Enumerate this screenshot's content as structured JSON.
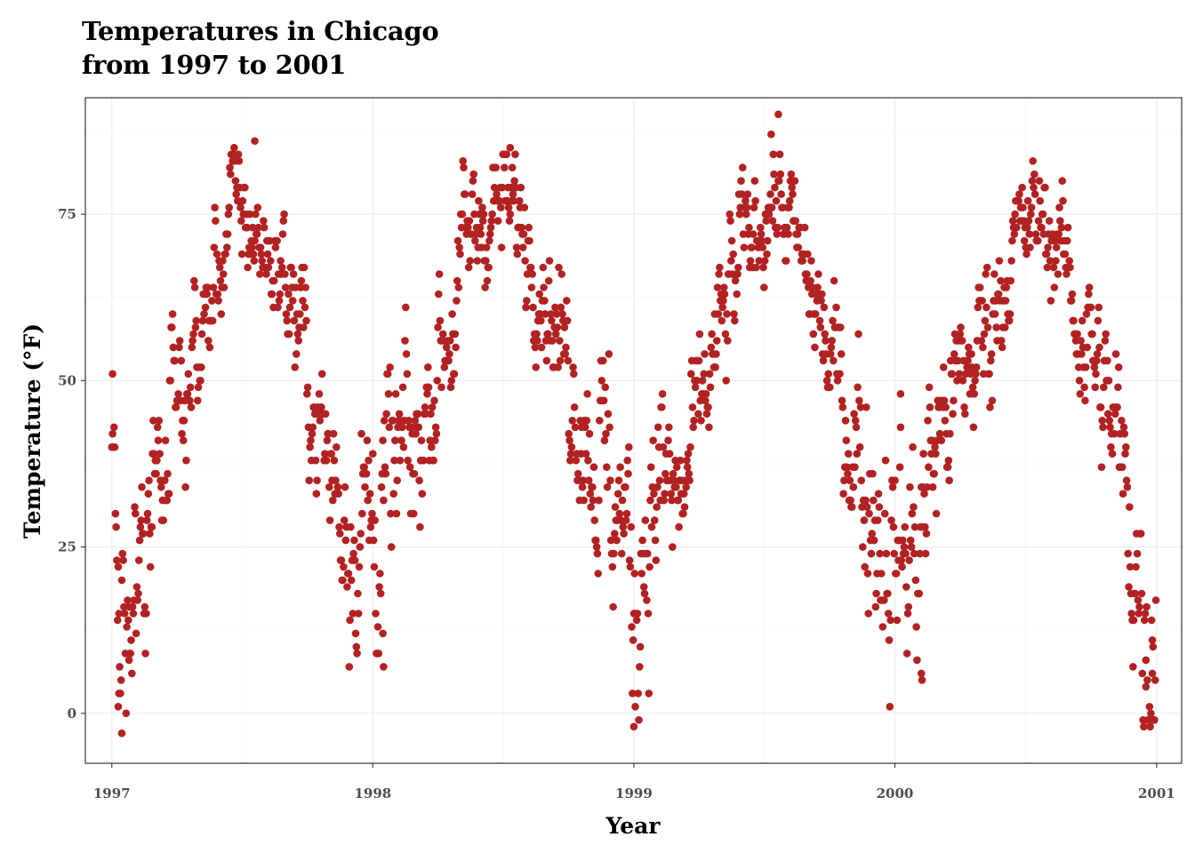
{
  "chart_data": {
    "type": "scatter",
    "title": "Temperatures in Chicago",
    "subtitle": "from 1997 to 2001",
    "xlabel": "Year",
    "ylabel": "Temperature (°F)",
    "x_ticks": [
      "1997",
      "1998",
      "1999",
      "2000",
      "2001"
    ],
    "y_ticks": [
      "0",
      "25",
      "50",
      "75"
    ],
    "xlim": [
      "1996-11-25",
      "2001-02-05"
    ],
    "ylim": [
      -7.5,
      92.5
    ],
    "grid": true,
    "point_color": "#b22222",
    "series_note": "",
    "anchors": [
      [
        "1997-01-01",
        40
      ],
      [
        "1997-01-15",
        15
      ],
      [
        "1997-02-01",
        27
      ],
      [
        "1997-02-15",
        33
      ],
      [
        "1997-03-01",
        36
      ],
      [
        "1997-03-15",
        40
      ],
      [
        "1997-04-01",
        46
      ],
      [
        "1997-04-15",
        50
      ],
      [
        "1997-05-01",
        54
      ],
      [
        "1997-05-15",
        59
      ],
      [
        "1997-06-01",
        68
      ],
      [
        "1997-06-15",
        75
      ],
      [
        "1997-07-01",
        76
      ],
      [
        "1997-07-15",
        73
      ],
      [
        "1997-08-01",
        70
      ],
      [
        "1997-08-15",
        69
      ],
      [
        "1997-09-01",
        66
      ],
      [
        "1997-09-15",
        60
      ],
      [
        "1997-10-01",
        52
      ],
      [
        "1997-10-15",
        44
      ],
      [
        "1997-11-01",
        38
      ],
      [
        "1997-11-15",
        33
      ],
      [
        "1997-12-01",
        31
      ],
      [
        "1997-12-15",
        30
      ],
      [
        "1998-01-01",
        29
      ],
      [
        "1998-01-15",
        30
      ],
      [
        "1998-02-01",
        34
      ],
      [
        "1998-02-15",
        37
      ],
      [
        "1998-03-01",
        38
      ],
      [
        "1998-03-15",
        45
      ],
      [
        "1998-04-01",
        54
      ],
      [
        "1998-04-15",
        58
      ],
      [
        "1998-05-01",
        63
      ],
      [
        "1998-05-15",
        70
      ],
      [
        "1998-06-01",
        75
      ],
      [
        "1998-06-15",
        76
      ],
      [
        "1998-07-01",
        76
      ],
      [
        "1998-07-15",
        75
      ],
      [
        "1998-08-01",
        73
      ],
      [
        "1998-08-15",
        70
      ],
      [
        "1998-09-01",
        64
      ],
      [
        "1998-09-15",
        58
      ],
      [
        "1998-10-01",
        52
      ],
      [
        "1998-10-15",
        48
      ],
      [
        "1998-11-01",
        43
      ],
      [
        "1998-11-15",
        38
      ],
      [
        "1998-12-01",
        35
      ],
      [
        "1998-12-15",
        30
      ],
      [
        "1999-01-01",
        17
      ],
      [
        "1999-01-15",
        28
      ],
      [
        "1999-02-01",
        33
      ],
      [
        "1999-02-15",
        34
      ],
      [
        "1999-03-01",
        30
      ],
      [
        "1999-03-15",
        34
      ],
      [
        "1999-04-01",
        42
      ],
      [
        "1999-04-15",
        50
      ],
      [
        "1999-05-01",
        55
      ],
      [
        "1999-05-15",
        62
      ],
      [
        "1999-06-01",
        68
      ],
      [
        "1999-06-15",
        72
      ],
      [
        "1999-07-01",
        76
      ],
      [
        "1999-07-15",
        78
      ],
      [
        "1999-08-01",
        75
      ],
      [
        "1999-08-15",
        70
      ],
      [
        "1999-09-01",
        65
      ],
      [
        "1999-09-15",
        60
      ],
      [
        "1999-10-01",
        53
      ],
      [
        "1999-10-15",
        48
      ],
      [
        "1999-11-01",
        43
      ],
      [
        "1999-11-15",
        38
      ],
      [
        "1999-12-01",
        34
      ],
      [
        "1999-12-15",
        28
      ],
      [
        "2000-01-01",
        26
      ],
      [
        "2000-01-15",
        22
      ],
      [
        "2000-02-01",
        26
      ],
      [
        "2000-02-15",
        33
      ],
      [
        "2000-03-01",
        44
      ],
      [
        "2000-03-15",
        45
      ],
      [
        "2000-04-01",
        49
      ],
      [
        "2000-04-15",
        52
      ],
      [
        "2000-05-01",
        56
      ],
      [
        "2000-05-15",
        60
      ],
      [
        "2000-06-01",
        67
      ],
      [
        "2000-06-15",
        70
      ],
      [
        "2000-07-01",
        72
      ],
      [
        "2000-07-15",
        74
      ],
      [
        "2000-08-01",
        74
      ],
      [
        "2000-08-15",
        71
      ],
      [
        "2000-09-01",
        65
      ],
      [
        "2000-09-15",
        60
      ],
      [
        "2000-10-01",
        55
      ],
      [
        "2000-10-15",
        49
      ],
      [
        "2000-11-01",
        42
      ],
      [
        "2000-11-15",
        33
      ],
      [
        "2000-12-01",
        27
      ],
      [
        "2000-12-15",
        14
      ],
      [
        "2000-12-31",
        15
      ]
    ],
    "extremes": [
      [
        "1997-01-02",
        51
      ],
      [
        "1997-01-10",
        1
      ],
      [
        "1997-01-11",
        3
      ],
      [
        "1997-01-15",
        -3
      ],
      [
        "1997-01-25",
        8
      ],
      [
        "1997-07-20",
        86
      ],
      [
        "1998-01-15",
        12
      ],
      [
        "1998-01-16",
        7
      ],
      [
        "1998-07-12",
        85
      ],
      [
        "1999-01-01",
        -2
      ],
      [
        "1999-01-03",
        1
      ],
      [
        "1999-07-22",
        90
      ],
      [
        "1999-07-12",
        87
      ],
      [
        "2000-01-09",
        48
      ],
      [
        "2000-02-07",
        6
      ],
      [
        "2000-02-08",
        5
      ],
      [
        "2000-12-17",
        4
      ],
      [
        "2000-12-21",
        -1
      ],
      [
        "2000-12-26",
        6
      ]
    ]
  }
}
